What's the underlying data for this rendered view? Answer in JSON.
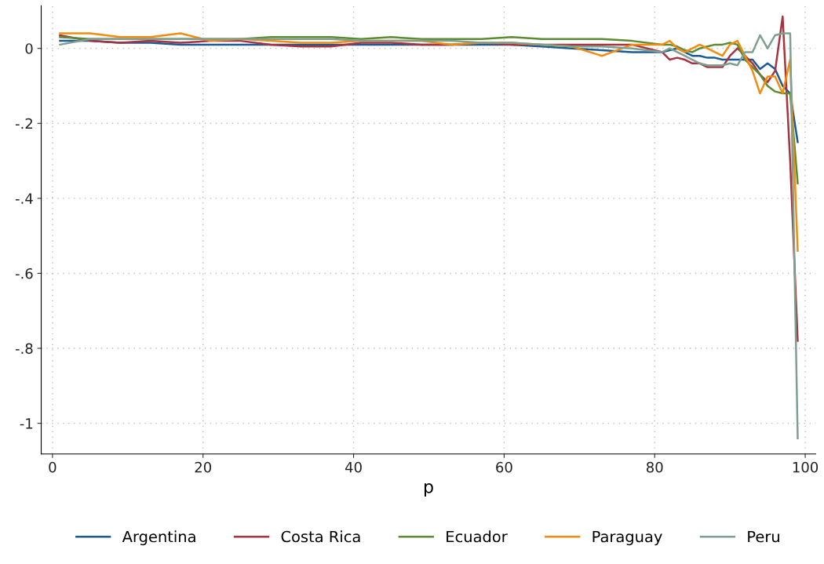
{
  "chart_data": {
    "type": "line",
    "xlabel": "p",
    "xlim": [
      -1.5,
      101.4
    ],
    "ylim": [
      -1.082,
      0.114
    ],
    "xticks": [
      0,
      20,
      40,
      60,
      80,
      100
    ],
    "yticks": [
      {
        "value": 0,
        "label": "0"
      },
      {
        "value": -0.2,
        "label": "-.2"
      },
      {
        "value": -0.4,
        "label": "-.4"
      },
      {
        "value": -0.6,
        "label": "-.6"
      },
      {
        "value": -0.8,
        "label": "-.8"
      },
      {
        "value": -1,
        "label": "-1"
      }
    ],
    "grid": true,
    "legend": "bottom",
    "marker": "none",
    "line_style": "solid",
    "x": [
      1,
      5,
      9,
      13,
      17,
      21,
      25,
      29,
      33,
      37,
      41,
      45,
      49,
      53,
      57,
      61,
      65,
      69,
      73,
      77,
      81,
      82,
      83,
      84,
      85,
      86,
      87,
      88,
      89,
      90,
      91,
      92,
      93,
      94,
      95,
      96,
      97,
      98,
      99
    ],
    "series": [
      {
        "name": "Argentina",
        "color": "#1a5a96",
        "values": [
          0.02,
          0.02,
          0.015,
          0.015,
          0.01,
          0.01,
          0.01,
          0.01,
          0.01,
          0.01,
          0.01,
          0.01,
          0.01,
          0.01,
          0.01,
          0.01,
          0.005,
          0.0,
          -0.005,
          -0.01,
          -0.01,
          -0.005,
          0.0,
          -0.01,
          -0.02,
          -0.02,
          -0.025,
          -0.025,
          -0.03,
          -0.03,
          -0.03,
          -0.03,
          -0.03,
          -0.055,
          -0.04,
          -0.055,
          -0.1,
          -0.12,
          -0.25
        ]
      },
      {
        "name": "Costa Rica",
        "color": "#a8323e",
        "values": [
          0.035,
          0.02,
          0.015,
          0.02,
          0.015,
          0.02,
          0.02,
          0.01,
          0.005,
          0.005,
          0.015,
          0.015,
          0.01,
          0.01,
          0.015,
          0.01,
          0.01,
          0.01,
          0.01,
          0.01,
          -0.01,
          -0.03,
          -0.025,
          -0.03,
          -0.04,
          -0.04,
          -0.05,
          -0.05,
          -0.05,
          -0.02,
          0.0,
          -0.02,
          -0.04,
          -0.07,
          -0.09,
          -0.06,
          0.085,
          -0.3,
          -0.78
        ]
      },
      {
        "name": "Ecuador",
        "color": "#5c8b32",
        "values": [
          0.03,
          0.025,
          0.025,
          0.025,
          0.025,
          0.025,
          0.025,
          0.03,
          0.03,
          0.03,
          0.025,
          0.03,
          0.025,
          0.025,
          0.025,
          0.03,
          0.025,
          0.025,
          0.025,
          0.02,
          0.01,
          0.01,
          0.005,
          -0.005,
          -0.01,
          0.0,
          0.005,
          0.01,
          0.01,
          0.015,
          0.01,
          -0.03,
          -0.05,
          -0.07,
          -0.1,
          -0.115,
          -0.12,
          -0.12,
          -0.36
        ]
      },
      {
        "name": "Paraguay",
        "color": "#f28c0f",
        "values": [
          0.04,
          0.04,
          0.03,
          0.03,
          0.04,
          0.02,
          0.025,
          0.02,
          0.015,
          0.015,
          0.02,
          0.02,
          0.02,
          0.01,
          0.015,
          0.015,
          0.01,
          0.005,
          -0.02,
          0.01,
          0.01,
          0.02,
          0.0,
          -0.01,
          0.0,
          0.01,
          0.0,
          -0.01,
          -0.02,
          0.01,
          0.02,
          -0.02,
          -0.06,
          -0.12,
          -0.075,
          -0.075,
          -0.12,
          -0.03,
          -0.54
        ]
      },
      {
        "name": "Peru",
        "color": "#7fa090",
        "values": [
          0.01,
          0.025,
          0.025,
          0.025,
          0.025,
          0.025,
          0.025,
          0.025,
          0.025,
          0.025,
          0.02,
          0.02,
          0.02,
          0.02,
          0.015,
          0.015,
          0.01,
          0.005,
          0.005,
          0.0,
          -0.01,
          0.0,
          -0.01,
          -0.02,
          -0.03,
          -0.04,
          -0.045,
          -0.045,
          -0.045,
          -0.04,
          -0.045,
          -0.01,
          -0.01,
          0.035,
          0.0,
          0.035,
          0.04,
          0.04,
          -1.04
        ]
      }
    ]
  }
}
